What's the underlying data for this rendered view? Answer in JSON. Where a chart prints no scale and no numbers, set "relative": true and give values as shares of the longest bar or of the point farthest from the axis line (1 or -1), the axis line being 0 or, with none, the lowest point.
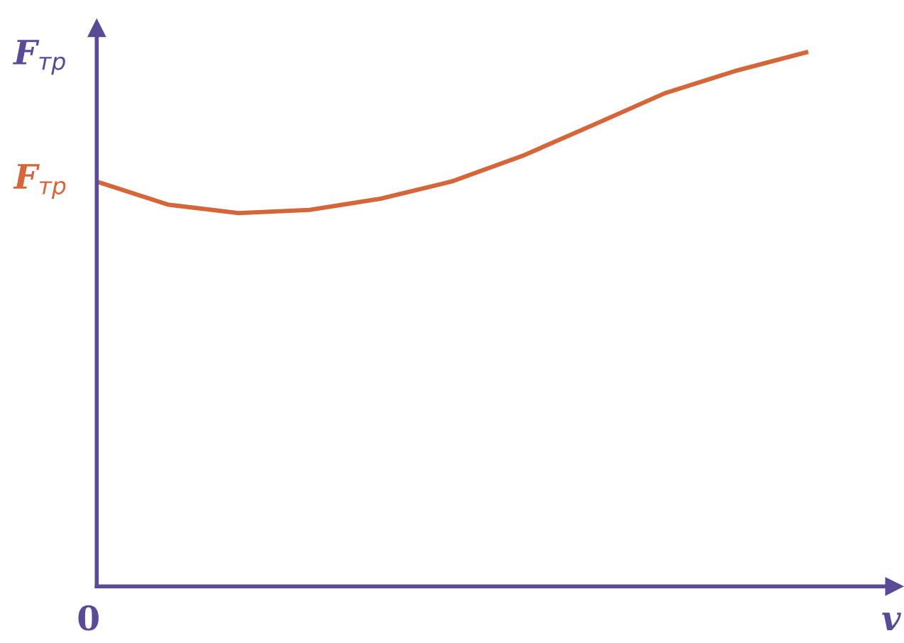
{
  "chart_data": {
    "type": "line",
    "relative": true,
    "ylabel": "F$_{тр}$",
    "xlabel": "v",
    "categories": [
      null,
      null,
      null,
      null,
      null,
      null,
      null,
      null,
      null,
      null,
      null
    ],
    "series": [
      {
        "color": "#d4663a",
        "values": [
          0.758,
          0.715,
          0.699,
          0.705,
          0.726,
          0.758,
          0.806,
          0.864,
          0.923,
          0.965,
          1.0
        ]
      }
    ],
    "annotations": [
      "F$_{тр}$",
      "0"
    ],
    "legend": false,
    "marker": "none",
    "line_style": "solid"
  }
}
